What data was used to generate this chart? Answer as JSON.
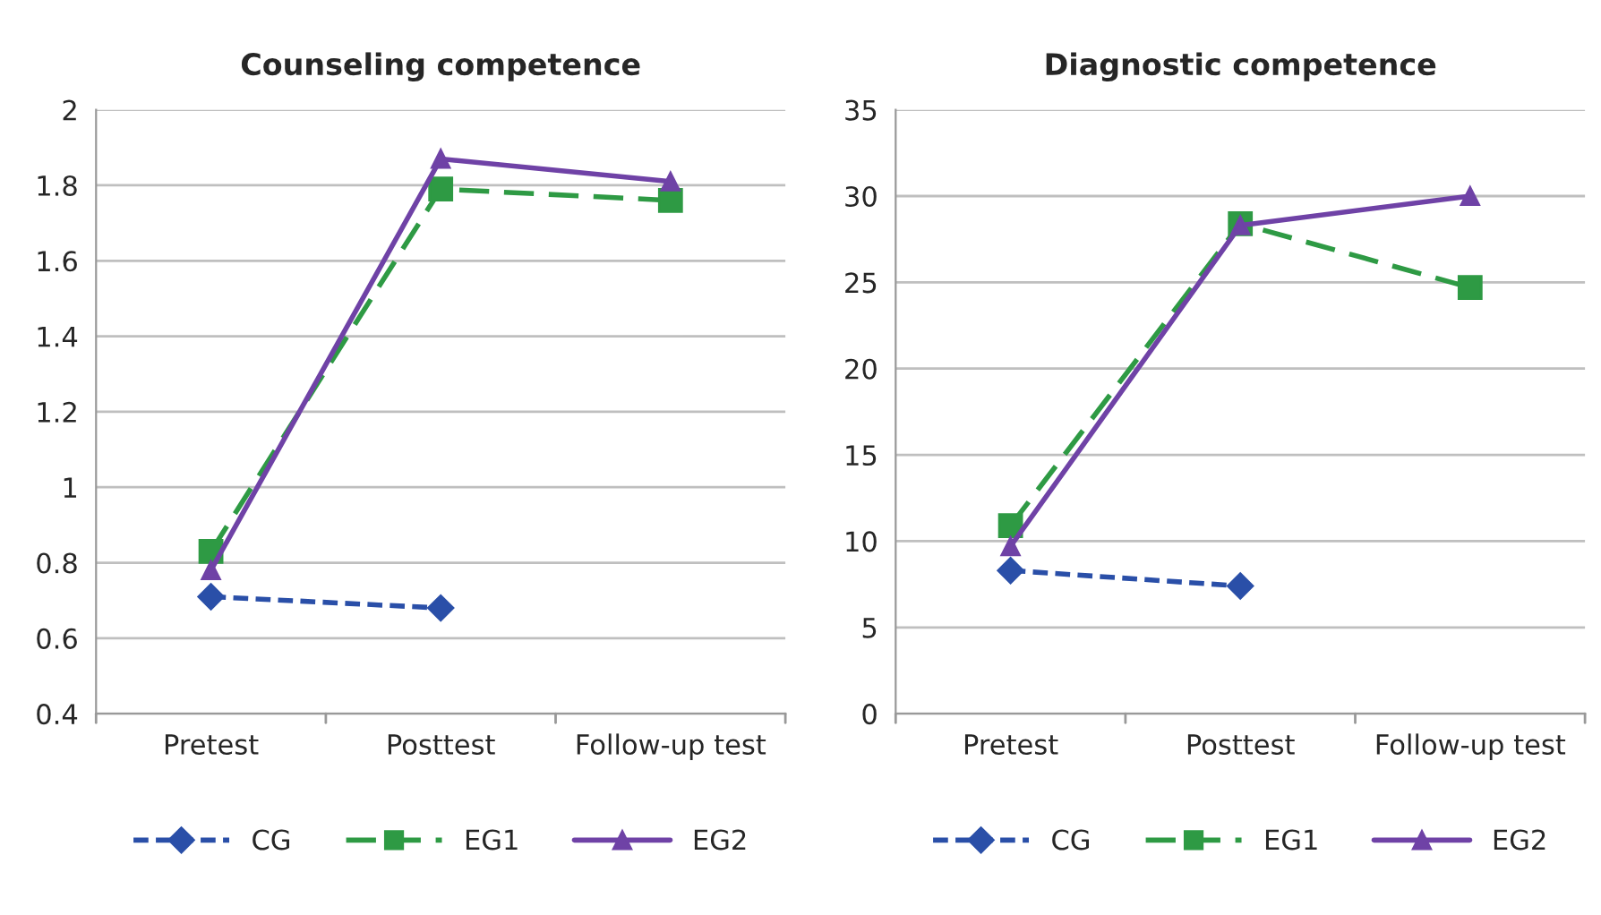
{
  "chart_data": [
    {
      "type": "line",
      "title": "Counseling competence",
      "categories": [
        "Pretest",
        "Posttest",
        "Follow-up test"
      ],
      "ylim": [
        0.4,
        2
      ],
      "yticks": [
        0.4,
        0.6,
        0.8,
        1,
        1.2,
        1.4,
        1.6,
        1.8,
        2
      ],
      "grid": "y",
      "legend": "bottom",
      "series": [
        {
          "name": "CG",
          "color": "#2a4fa8",
          "values": [
            0.71,
            0.68,
            null
          ],
          "marker": "diamond",
          "line_style": "dotted"
        },
        {
          "name": "EG1",
          "color": "#2e9a44",
          "values": [
            0.83,
            1.79,
            1.76
          ],
          "marker": "square",
          "line_style": "dashed"
        },
        {
          "name": "EG2",
          "color": "#6f42a6",
          "values": [
            0.78,
            1.87,
            1.81
          ],
          "marker": "triangle",
          "line_style": "solid"
        }
      ]
    },
    {
      "type": "line",
      "title": "Diagnostic competence",
      "categories": [
        "Pretest",
        "Posttest",
        "Follow-up test"
      ],
      "ylim": [
        0,
        35
      ],
      "yticks": [
        0,
        5,
        10,
        15,
        20,
        25,
        30,
        35
      ],
      "grid": "y",
      "legend": "bottom",
      "series": [
        {
          "name": "CG",
          "color": "#2a4fa8",
          "values": [
            8.3,
            7.4,
            null
          ],
          "marker": "diamond",
          "line_style": "dotted"
        },
        {
          "name": "EG1",
          "color": "#2e9a44",
          "values": [
            10.9,
            28.4,
            24.7
          ],
          "marker": "square",
          "line_style": "dashed"
        },
        {
          "name": "EG2",
          "color": "#6f42a6",
          "values": [
            9.7,
            28.3,
            30.0
          ],
          "marker": "triangle",
          "line_style": "solid"
        }
      ]
    }
  ]
}
